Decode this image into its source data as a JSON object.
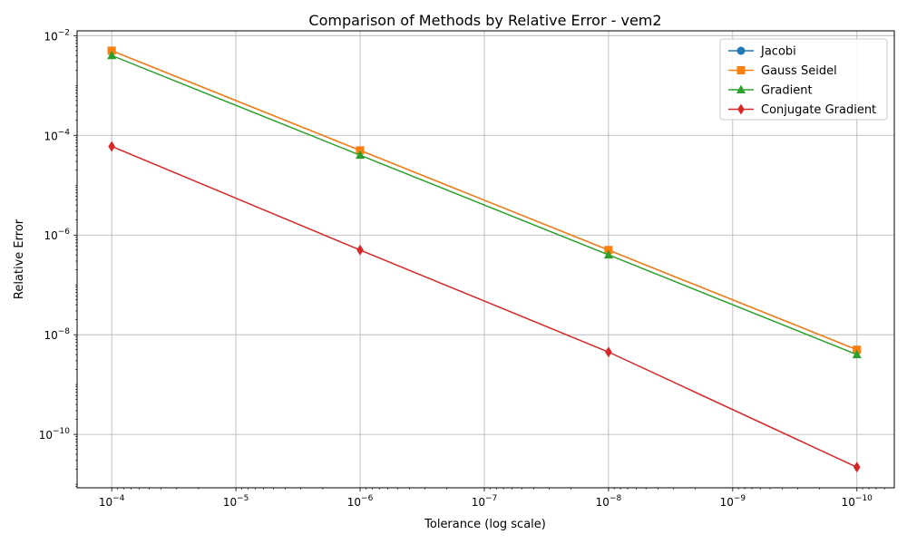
{
  "chart_data": {
    "type": "line",
    "title": "Comparison of Methods by Relative Error - vem2",
    "xlabel": "Tolerance (log scale)",
    "ylabel": "Relative Error",
    "x_scale": "log",
    "y_scale": "log",
    "x_reversed": true,
    "xlim": [
      0.00019,
      5e-11
    ],
    "ylim": [
      8.5e-12,
      0.0125
    ],
    "grid": true,
    "legend_position": "top-right",
    "x_ticks": [
      {
        "value": 0.0001,
        "base": "10",
        "exp": "−4"
      },
      {
        "value": 1e-05,
        "base": "10",
        "exp": "−5"
      },
      {
        "value": 1e-06,
        "base": "10",
        "exp": "−6"
      },
      {
        "value": 1e-07,
        "base": "10",
        "exp": "−7"
      },
      {
        "value": 1e-08,
        "base": "10",
        "exp": "−8"
      },
      {
        "value": 1e-09,
        "base": "10",
        "exp": "−9"
      },
      {
        "value": 1e-10,
        "base": "10",
        "exp": "−10"
      }
    ],
    "y_ticks": [
      {
        "value": 0.01,
        "base": "10",
        "exp": "−2"
      },
      {
        "value": 0.0001,
        "base": "10",
        "exp": "−4"
      },
      {
        "value": 1e-06,
        "base": "10",
        "exp": "−6"
      },
      {
        "value": 1e-08,
        "base": "10",
        "exp": "−8"
      },
      {
        "value": 1e-10,
        "base": "10",
        "exp": "−10"
      }
    ],
    "x": [
      0.0001,
      1e-06,
      1e-08,
      1e-10
    ],
    "series": [
      {
        "name": "Jacobi",
        "color": "#1f77b4",
        "marker": "circle",
        "values": [
          0.005,
          5e-05,
          5e-07,
          5e-09
        ]
      },
      {
        "name": "Gauss Seidel",
        "color": "#ff7f0e",
        "marker": "square",
        "values": [
          0.005,
          5e-05,
          5e-07,
          5e-09
        ]
      },
      {
        "name": "Gradient",
        "color": "#2ca02c",
        "marker": "triangle",
        "values": [
          0.004,
          4e-05,
          4e-07,
          4e-09
        ]
      },
      {
        "name": "Conjugate Gradient",
        "color": "#d62728",
        "marker": "diamond",
        "values": [
          6e-05,
          5e-07,
          4.5e-09,
          2.2e-11
        ]
      }
    ]
  }
}
